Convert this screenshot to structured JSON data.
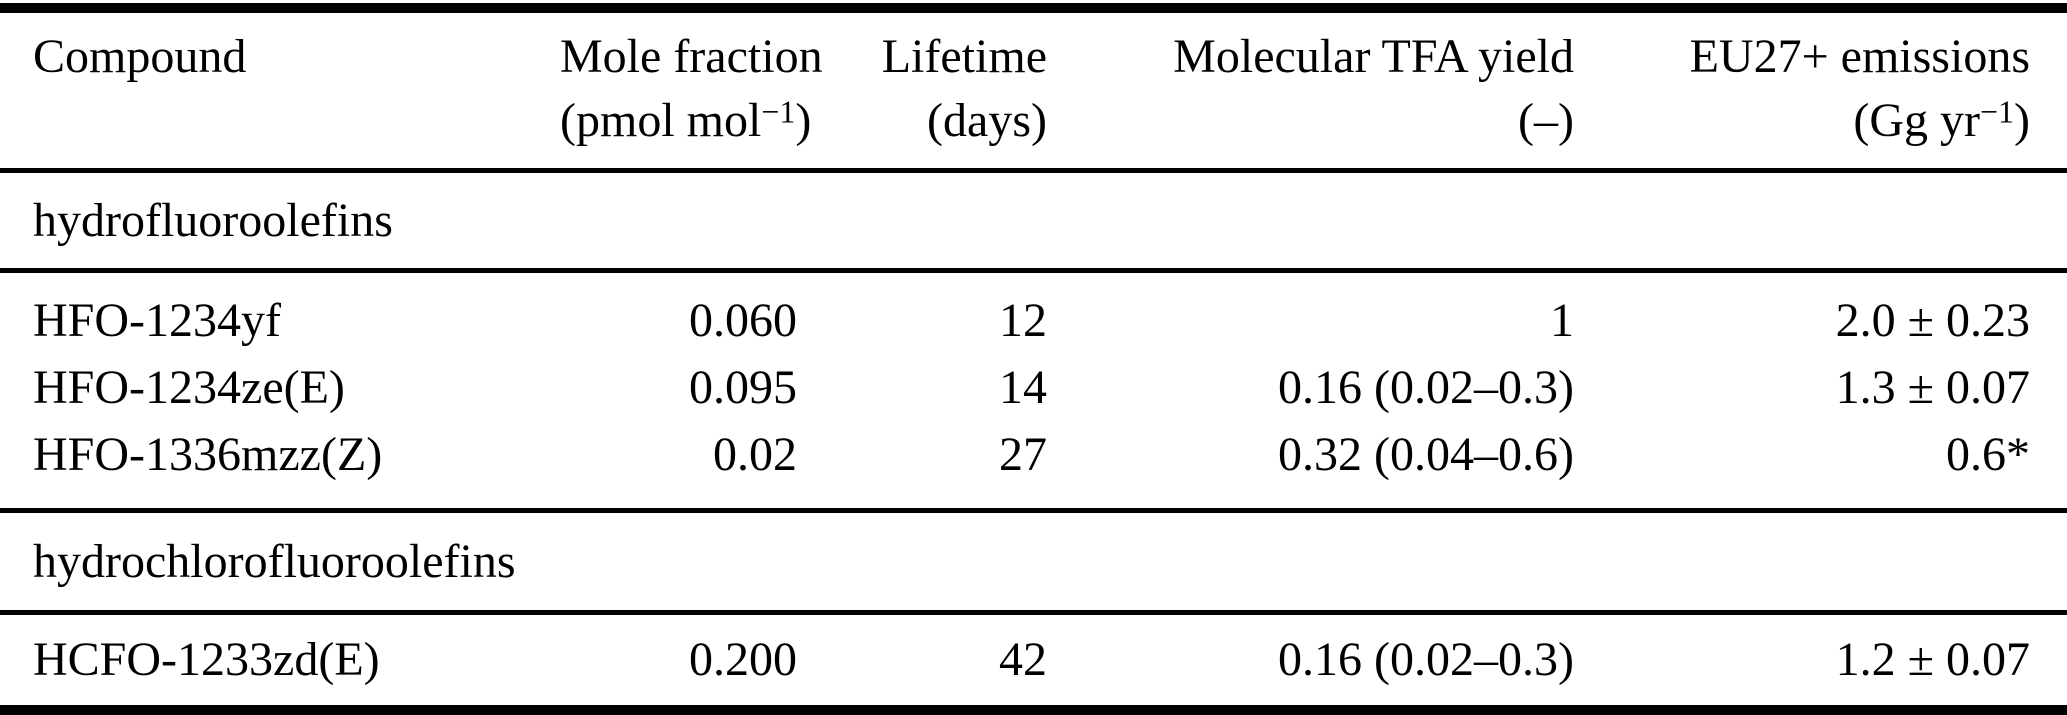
{
  "colors": {
    "background": "#ffffff",
    "text": "#000000",
    "rule": "#000000"
  },
  "header": {
    "compound": "Compound",
    "mole_fraction": {
      "label": "Mole fraction",
      "unit_pre": "(pmol mol",
      "unit_sup": "−1",
      "unit_post": ")"
    },
    "lifetime": {
      "label": "Lifetime",
      "unit": "(days)"
    },
    "tfa_yield": {
      "label": "Molecular TFA yield",
      "unit": "(–)"
    },
    "emissions": {
      "label": "EU27+ emissions",
      "unit_pre": "(Gg yr",
      "unit_sup": "−1",
      "unit_post": ")"
    }
  },
  "sections": [
    {
      "title": "hydrofluoroolefins",
      "rows": [
        {
          "compound": "HFO-1234yf",
          "mole_fraction": "0.060",
          "lifetime": "12",
          "tfa_yield": "1",
          "emissions": "2.0 ± 0.23"
        },
        {
          "compound": "HFO-1234ze(E)",
          "mole_fraction": "0.095",
          "lifetime": "14",
          "tfa_yield": "0.16 (0.02–0.3)",
          "emissions": "1.3 ± 0.07"
        },
        {
          "compound": "HFO-1336mzz(Z)",
          "mole_fraction": "0.02",
          "lifetime": "27",
          "tfa_yield": "0.32 (0.04–0.6)",
          "emissions": "0.6*"
        }
      ]
    },
    {
      "title": "hydrochlorofluoroolefins",
      "rows": [
        {
          "compound": "HCFO-1233zd(E)",
          "mole_fraction": "0.200",
          "lifetime": "42",
          "tfa_yield": "0.16 (0.02–0.3)",
          "emissions": "1.2 ± 0.07"
        }
      ]
    }
  ]
}
